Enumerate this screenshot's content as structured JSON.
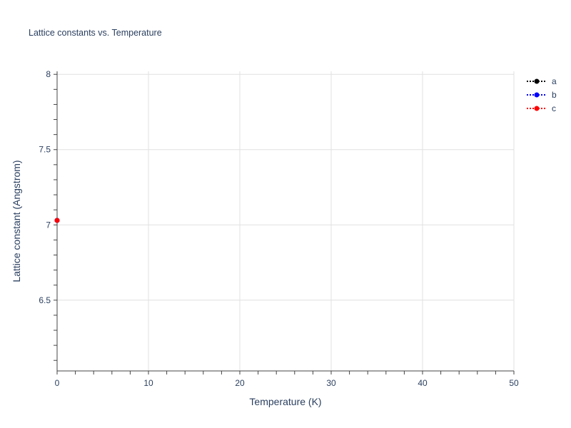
{
  "chart_data": {
    "type": "scatter",
    "title": "Lattice constants vs. Temperature",
    "xlabel": "Temperature (K)",
    "ylabel": "Lattice constant (Angstrom)",
    "xlim": [
      0,
      50
    ],
    "ylim": [
      6.03,
      8.02
    ],
    "xticks": [
      0,
      10,
      20,
      30,
      40,
      50
    ],
    "yticks": [
      6.5,
      7,
      7.5,
      8
    ],
    "ytick_labels": [
      "6.5",
      "7",
      "7.5",
      "8"
    ],
    "grid": true,
    "legend_position": "top-right",
    "series": [
      {
        "name": "a",
        "color": "#000000",
        "x": [
          0
        ],
        "y": [
          7.03
        ]
      },
      {
        "name": "b",
        "color": "#0000ff",
        "x": [
          0
        ],
        "y": [
          7.03
        ]
      },
      {
        "name": "c",
        "color": "#ff0000",
        "x": [
          0
        ],
        "y": [
          7.03
        ]
      }
    ]
  }
}
